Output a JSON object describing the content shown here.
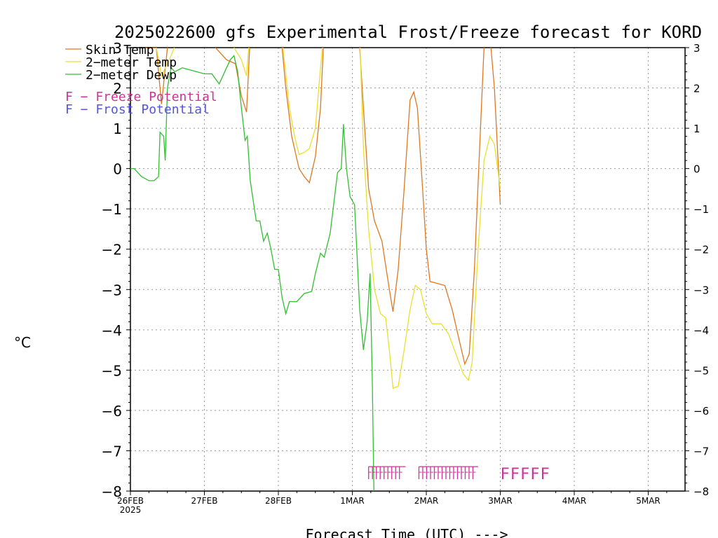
{
  "chart_data": {
    "type": "line",
    "title": "2025022600 gfs Experimental Frost/Freeze forecast for KORD",
    "xlabel": "Forecast Time (UTC) --->",
    "ylabel": "°C",
    "ylim": [
      -8,
      3
    ],
    "xlim_days": [
      "26FEB 00Z",
      "5MAR 12Z"
    ],
    "grid": true,
    "legend_position": "top-left",
    "y_ticks": [
      "3",
      "2",
      "1",
      "0",
      "−1",
      "−2",
      "−3",
      "−4",
      "−5",
      "−6",
      "−7",
      "−8"
    ],
    "x_ticks": [
      "26FEB",
      "27FEB",
      "28FEB",
      "1MAR",
      "2MAR",
      "3MAR",
      "4MAR",
      "5MAR"
    ],
    "x_tick_sublabel": "2025",
    "series": [
      {
        "name": "Skin Temp",
        "color": "#e07820",
        "points": [
          [
            0.0,
            3.5
          ],
          [
            0.2,
            3.0
          ],
          [
            0.35,
            3.0
          ],
          [
            0.42,
            1.6
          ],
          [
            0.5,
            3.0
          ],
          [
            0.7,
            3.5
          ],
          [
            1.15,
            3.0
          ],
          [
            1.3,
            2.7
          ],
          [
            1.42,
            2.6
          ],
          [
            1.5,
            1.8
          ],
          [
            1.57,
            1.4
          ],
          [
            1.62,
            3.3
          ],
          [
            2.05,
            3.0
          ],
          [
            2.1,
            2.0
          ],
          [
            2.18,
            0.8
          ],
          [
            2.28,
            0.0
          ],
          [
            2.35,
            -0.2
          ],
          [
            2.42,
            -0.35
          ],
          [
            2.5,
            0.3
          ],
          [
            2.57,
            1.5
          ],
          [
            2.62,
            3.5
          ],
          [
            3.1,
            3.0
          ],
          [
            3.15,
            1.5
          ],
          [
            3.22,
            -0.5
          ],
          [
            3.3,
            -1.3
          ],
          [
            3.4,
            -1.8
          ],
          [
            3.5,
            -3.0
          ],
          [
            3.55,
            -3.55
          ],
          [
            3.62,
            -2.5
          ],
          [
            3.7,
            -0.5
          ],
          [
            3.78,
            1.7
          ],
          [
            3.83,
            1.9
          ],
          [
            3.88,
            1.5
          ],
          [
            3.95,
            -0.5
          ],
          [
            4.0,
            -2.0
          ],
          [
            4.05,
            -2.8
          ],
          [
            4.15,
            -2.85
          ],
          [
            4.25,
            -2.9
          ],
          [
            4.35,
            -3.5
          ],
          [
            4.45,
            -4.3
          ],
          [
            4.52,
            -4.85
          ],
          [
            4.58,
            -4.6
          ],
          [
            4.65,
            -2.5
          ],
          [
            4.72,
            0.5
          ],
          [
            4.78,
            3.0
          ],
          [
            4.85,
            3.5
          ],
          [
            4.92,
            2.0
          ],
          [
            5.0,
            -0.9
          ]
        ]
      },
      {
        "name": "2-meter Temp",
        "color": "#e8e030",
        "points": [
          [
            0.0,
            3.5
          ],
          [
            0.3,
            3.5
          ],
          [
            0.42,
            2.3
          ],
          [
            0.55,
            2.8
          ],
          [
            0.7,
            3.5
          ],
          [
            1.2,
            3.5
          ],
          [
            1.4,
            3.0
          ],
          [
            1.5,
            2.7
          ],
          [
            1.57,
            2.3
          ],
          [
            1.62,
            3.5
          ],
          [
            2.05,
            3.2
          ],
          [
            2.15,
            1.5
          ],
          [
            2.22,
            0.8
          ],
          [
            2.28,
            0.35
          ],
          [
            2.35,
            0.4
          ],
          [
            2.42,
            0.5
          ],
          [
            2.5,
            1.0
          ],
          [
            2.57,
            2.5
          ],
          [
            2.62,
            3.5
          ],
          [
            3.1,
            3.3
          ],
          [
            3.15,
            0.5
          ],
          [
            3.22,
            -1.5
          ],
          [
            3.3,
            -3.0
          ],
          [
            3.38,
            -3.6
          ],
          [
            3.45,
            -3.7
          ],
          [
            3.5,
            -4.5
          ],
          [
            3.55,
            -5.45
          ],
          [
            3.62,
            -5.4
          ],
          [
            3.7,
            -4.5
          ],
          [
            3.78,
            -3.5
          ],
          [
            3.85,
            -2.9
          ],
          [
            3.92,
            -3.0
          ],
          [
            4.0,
            -3.6
          ],
          [
            4.08,
            -3.85
          ],
          [
            4.2,
            -3.85
          ],
          [
            4.3,
            -4.1
          ],
          [
            4.4,
            -4.6
          ],
          [
            4.5,
            -5.1
          ],
          [
            4.57,
            -5.25
          ],
          [
            4.62,
            -4.8
          ],
          [
            4.7,
            -2.0
          ],
          [
            4.78,
            0.2
          ],
          [
            4.86,
            0.8
          ],
          [
            4.92,
            0.6
          ],
          [
            5.0,
            -0.5
          ]
        ]
      },
      {
        "name": "2-meter Dewp",
        "color": "#30c030",
        "points": [
          [
            0.0,
            0.0
          ],
          [
            0.05,
            0.0
          ],
          [
            0.15,
            -0.2
          ],
          [
            0.25,
            -0.3
          ],
          [
            0.32,
            -0.3
          ],
          [
            0.38,
            -0.2
          ],
          [
            0.4,
            0.9
          ],
          [
            0.45,
            0.8
          ],
          [
            0.47,
            0.2
          ],
          [
            0.5,
            2.0
          ],
          [
            0.55,
            2.5
          ],
          [
            0.6,
            2.4
          ],
          [
            0.7,
            2.5
          ],
          [
            0.8,
            2.45
          ],
          [
            0.9,
            2.4
          ],
          [
            1.0,
            2.35
          ],
          [
            1.1,
            2.35
          ],
          [
            1.2,
            2.1
          ],
          [
            1.3,
            2.5
          ],
          [
            1.35,
            2.7
          ],
          [
            1.4,
            2.8
          ],
          [
            1.45,
            2.4
          ],
          [
            1.5,
            1.5
          ],
          [
            1.55,
            0.7
          ],
          [
            1.58,
            0.8
          ],
          [
            1.62,
            -0.3
          ],
          [
            1.7,
            -1.3
          ],
          [
            1.75,
            -1.3
          ],
          [
            1.8,
            -1.8
          ],
          [
            1.85,
            -1.6
          ],
          [
            1.9,
            -2.0
          ],
          [
            1.95,
            -2.5
          ],
          [
            2.0,
            -2.5
          ],
          [
            2.05,
            -3.2
          ],
          [
            2.1,
            -3.6
          ],
          [
            2.15,
            -3.3
          ],
          [
            2.25,
            -3.3
          ],
          [
            2.35,
            -3.1
          ],
          [
            2.45,
            -3.05
          ],
          [
            2.5,
            -2.6
          ],
          [
            2.57,
            -2.1
          ],
          [
            2.62,
            -2.2
          ],
          [
            2.7,
            -1.6
          ],
          [
            2.8,
            -0.1
          ],
          [
            2.85,
            0.0
          ],
          [
            2.88,
            1.1
          ],
          [
            2.92,
            0.0
          ],
          [
            2.97,
            -0.7
          ],
          [
            3.03,
            -0.9
          ],
          [
            3.1,
            -3.5
          ],
          [
            3.15,
            -4.5
          ],
          [
            3.2,
            -3.8
          ],
          [
            3.24,
            -2.6
          ],
          [
            3.27,
            -5.3
          ],
          [
            3.3,
            -9.0
          ]
        ]
      }
    ],
    "freeze_markers": {
      "label": "F",
      "color": "#cc3399",
      "y": -7.55,
      "groups": [
        {
          "start": 3.22,
          "end": 3.72,
          "style": "dense"
        },
        {
          "start": 3.9,
          "end": 4.7,
          "style": "dense"
        },
        {
          "start": 5.0,
          "end": 5.5,
          "style": "letters",
          "text": "FFFFF"
        }
      ]
    }
  },
  "legend": {
    "items": [
      {
        "label": "Skin Temp",
        "color": "#e07820"
      },
      {
        "label": "2−meter Temp",
        "color": "#e8e030"
      },
      {
        "label": "2−meter Dewp",
        "color": "#30c030"
      }
    ],
    "freeze_text": "F  −  Freeze Potential",
    "freeze_color": "#cc3399",
    "frost_text": "F  −  Frost Potential",
    "frost_color": "#5555dd"
  }
}
